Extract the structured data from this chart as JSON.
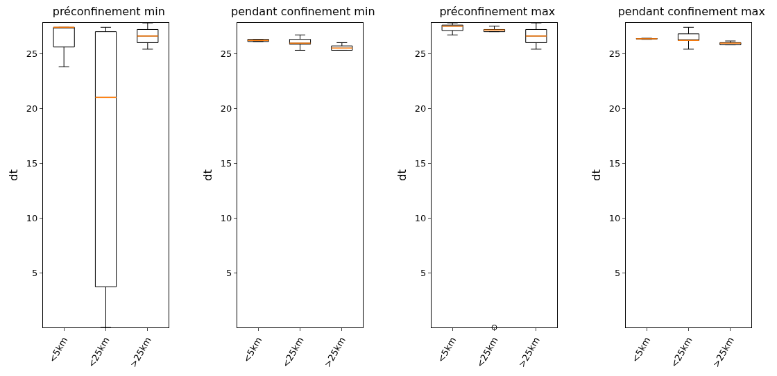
{
  "chart_data": [
    {
      "type": "box",
      "title": "préconfinement min",
      "ylabel": "dt",
      "categories": [
        "<5km",
        "<25km",
        ">25km"
      ],
      "ylim": [
        0,
        27.8
      ],
      "yticks": [
        5,
        10,
        15,
        20,
        25
      ],
      "grid": false,
      "series": [
        {
          "color": "#000000",
          "boxes": [
            {
              "low": 23.8,
              "q1": 25.6,
              "median": 27.4,
              "q3": 27.4,
              "high": 27.4
            },
            {
              "low": 0,
              "q1": 3.7,
              "median": 21.0,
              "q3": 27.0,
              "high": 27.4
            },
            {
              "low": 25.4,
              "q1": 26.0,
              "median": 26.6,
              "q3": 27.2,
              "high": 27.8
            }
          ]
        }
      ]
    },
    {
      "type": "box",
      "title": "pendant confinement min",
      "ylabel": "dt",
      "categories": [
        "<5km",
        "<25km",
        ">25km"
      ],
      "ylim": [
        0,
        27.8
      ],
      "yticks": [
        5,
        10,
        15,
        20,
        25
      ],
      "grid": false,
      "series": [
        {
          "color": "#000000",
          "boxes": [
            {
              "low": 26.1,
              "q1": 26.1,
              "median": 26.2,
              "q3": 26.3,
              "high": 26.3
            },
            {
              "low": 25.3,
              "q1": 25.85,
              "median": 25.95,
              "q3": 26.3,
              "high": 26.7
            },
            {
              "low": 25.3,
              "q1": 25.3,
              "median": 25.5,
              "q3": 25.7,
              "high": 26.0
            }
          ]
        }
      ]
    },
    {
      "type": "box",
      "title": "préconfinement max",
      "ylabel": "dt",
      "categories": [
        "<5km",
        "<25km",
        ">25km"
      ],
      "ylim": [
        0,
        27.8
      ],
      "yticks": [
        5,
        10,
        15,
        20,
        25
      ],
      "grid": false,
      "series": [
        {
          "color": "#000000",
          "boxes": [
            {
              "low": 26.7,
              "q1": 27.1,
              "median": 27.5,
              "q3": 27.6,
              "high": 27.8
            },
            {
              "low": 27.0,
              "q1": 27.0,
              "median": 27.15,
              "q3": 27.2,
              "high": 27.5,
              "outliers": [
                0
              ]
            },
            {
              "low": 25.4,
              "q1": 26.0,
              "median": 26.6,
              "q3": 27.2,
              "high": 27.8
            }
          ]
        }
      ]
    },
    {
      "type": "box",
      "title": "pendant confinement max",
      "ylabel": "dt",
      "categories": [
        "<5km",
        "<25km",
        ">25km"
      ],
      "ylim": [
        0,
        27.8
      ],
      "yticks": [
        5,
        10,
        15,
        20,
        25
      ],
      "grid": false,
      "series": [
        {
          "color": "#000000",
          "boxes": [
            {
              "low": 26.3,
              "q1": 26.33,
              "median": 26.35,
              "q3": 26.37,
              "high": 26.4
            },
            {
              "low": 25.4,
              "q1": 26.2,
              "median": 26.2,
              "q3": 26.8,
              "high": 27.4
            },
            {
              "low": 25.8,
              "q1": 25.8,
              "median": 25.95,
              "q3": 26.0,
              "high": 26.15
            }
          ]
        }
      ]
    }
  ]
}
